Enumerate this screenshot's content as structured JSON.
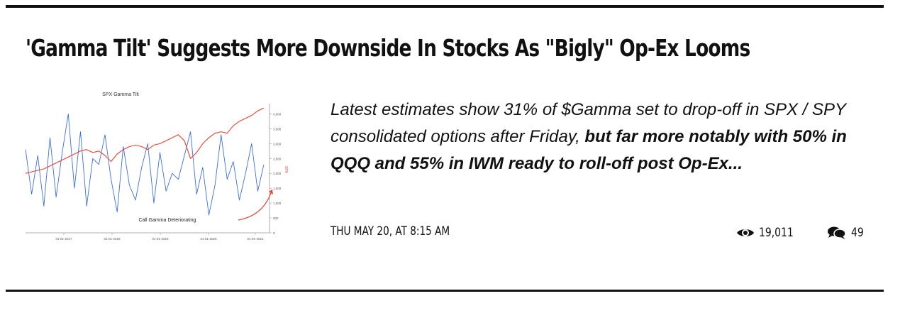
{
  "article": {
    "title": "'Gamma Tilt' Suggests More Downside In Stocks As \"Bigly\" Op-Ex Looms",
    "teaser_italic": "Latest estimates show 31% of $Gamma set to drop-off in SPX / SPY consolidated options after Friday, ",
    "teaser_bold": "but far more notably with 50% in QQQ and 55% in IWM ready to roll-off post Op-Ex...",
    "date": "THU MAY 20, AT 8:15 AM",
    "views": "19,011",
    "comments": "49",
    "icons": {
      "views": "eye-icon",
      "comments": "comment-bubbles-icon"
    }
  },
  "chart_data": {
    "type": "line",
    "title": "SPX Gamma Tilt",
    "annotation": "Call Gamma Deteriorating",
    "x_ticks": [
      "01-01-2017",
      "01-01-2018",
      "01-01-2019",
      "01-01-2020",
      "01-01-2021"
    ],
    "y_right_label": "SPX",
    "y_right_ticks": [
      "4,000",
      "3,500",
      "3,000",
      "2,500",
      "2,000",
      "1,500",
      "1,000",
      "500",
      "0"
    ],
    "y_right_range": [
      0,
      4250
    ],
    "colors": {
      "gamma_tilt": "#3b6fe0",
      "spx": "#e8432e",
      "annotation_arrow": "#e8432e"
    },
    "series": [
      {
        "name": "",
        "color": "#e8432e",
        "values": [
          2000,
          2050,
          2100,
          2150,
          2250,
          2350,
          2450,
          2550,
          2650,
          2750,
          2800,
          2700,
          2750,
          2600,
          2400,
          2650,
          2800,
          2900,
          2950,
          2900,
          2800,
          2950,
          3000,
          3100,
          3200,
          3300,
          3100,
          2500,
          2700,
          3000,
          3200,
          3350,
          3400,
          3350,
          3600,
          3750,
          3850,
          3950,
          4100,
          4200
        ]
      },
      {
        "name": "",
        "color": "#3b6fe0",
        "values": [
          2800,
          1300,
          2600,
          900,
          3200,
          1200,
          2700,
          4000,
          1500,
          3400,
          900,
          2500,
          2300,
          3300,
          1800,
          700,
          2900,
          1600,
          1100,
          2200,
          3000,
          1000,
          2700,
          1400,
          2000,
          1800,
          2600,
          3400,
          1300,
          2200,
          600,
          1600,
          3300,
          1800,
          2400,
          1100,
          2000,
          3000,
          1400,
          2300
        ]
      }
    ]
  }
}
